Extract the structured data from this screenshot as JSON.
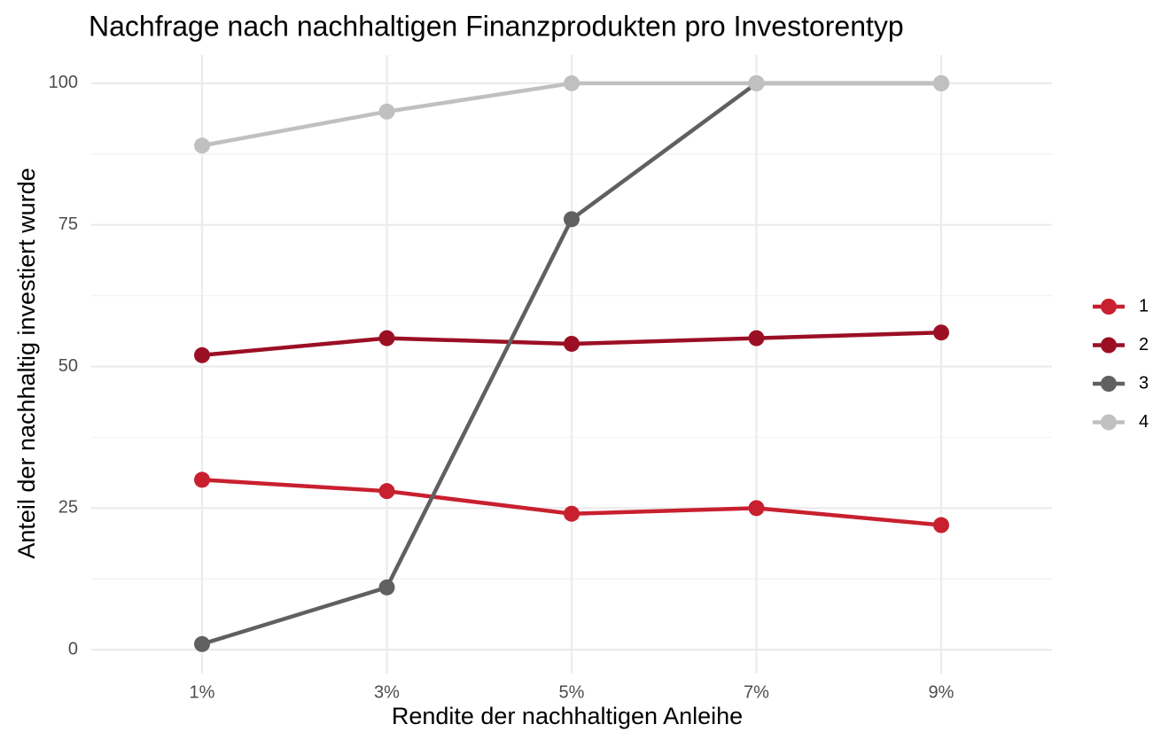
{
  "chart_data": {
    "type": "line",
    "title": "Nachfrage nach nachhaltigen Finanzprodukten pro Investorentyp",
    "x_label": "Rendite der nachhaltigen Anleihe",
    "y_label": "Anteil der nachhaltig investiert wurde",
    "categories": [
      "1%",
      "3%",
      "5%",
      "7%",
      "9%"
    ],
    "series": [
      {
        "name": "1",
        "color": "#c8202f",
        "values": [
          30,
          28,
          24,
          25,
          22
        ]
      },
      {
        "name": "2",
        "color": "#9b0f24",
        "values": [
          52,
          55,
          54,
          55,
          56
        ]
      },
      {
        "name": "3",
        "color": "#606060",
        "values": [
          1,
          11,
          76,
          100,
          100
        ]
      },
      {
        "name": "4",
        "color": "#c0c0c0",
        "values": [
          89,
          95,
          100,
          100,
          100
        ]
      }
    ],
    "ylim": [
      -4.2,
      105
    ],
    "yticks": [
      0,
      25,
      50,
      75,
      100
    ],
    "grid": true,
    "legend": "right"
  }
}
